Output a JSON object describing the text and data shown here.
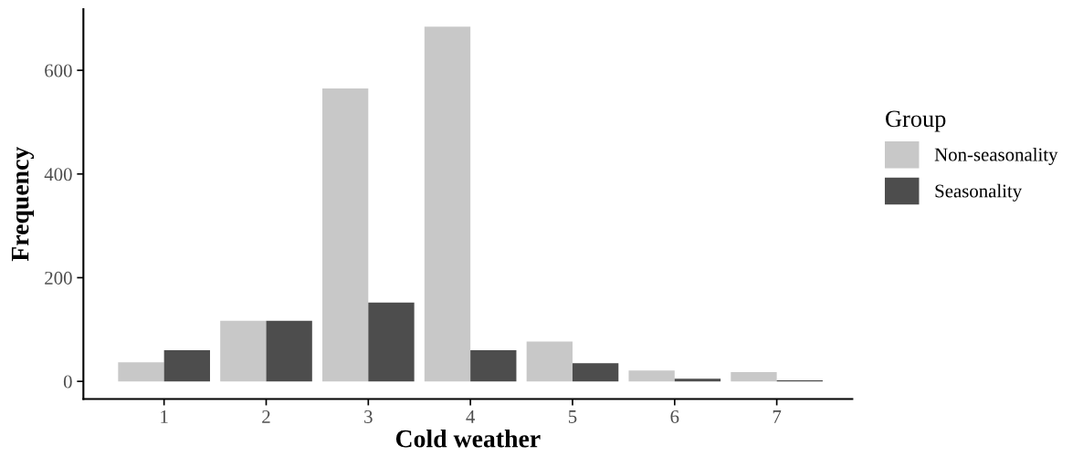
{
  "chart_data": {
    "type": "bar",
    "xlabel": "Cold weather",
    "ylabel": "Frequency",
    "legend_title": "Group",
    "categories": [
      "1",
      "2",
      "3",
      "4",
      "5",
      "6",
      "7"
    ],
    "series": [
      {
        "name": "Non-seasonality",
        "color": "#c8c8c8",
        "values": [
          37,
          117,
          565,
          684,
          77,
          21,
          18
        ]
      },
      {
        "name": "Seasonality",
        "color": "#4d4d4d",
        "values": [
          60,
          117,
          152,
          60,
          35,
          5,
          2
        ]
      }
    ],
    "ylim": [
      -34,
      718
    ],
    "yticks": [
      0,
      200,
      400,
      600
    ],
    "grid": false,
    "legend": "right"
  }
}
